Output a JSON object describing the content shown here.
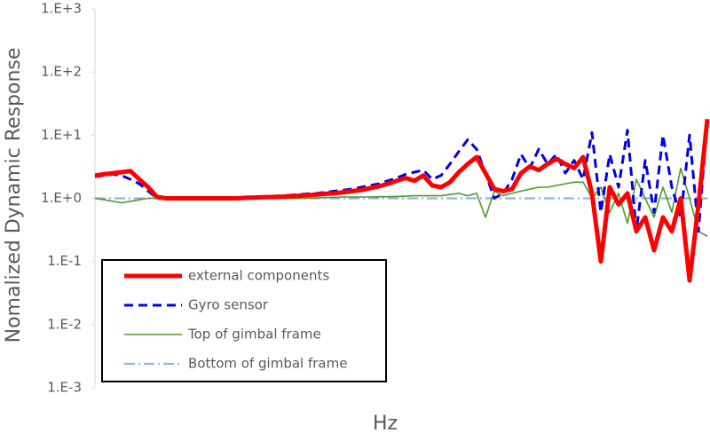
{
  "chart_data": {
    "type": "line",
    "y_label": "Nomalized Dynamic Response",
    "x_label": "Hz",
    "log_scale": true,
    "ylim": [
      0.001,
      1000
    ],
    "yticks": [
      {
        "value": 0.001,
        "label": "1.E-3"
      },
      {
        "value": 0.01,
        "label": "1.E-2"
      },
      {
        "value": 0.1,
        "label": "1.E-1"
      },
      {
        "value": 1,
        "label": "1.E+0"
      },
      {
        "value": 10,
        "label": "1.E+1"
      },
      {
        "value": 100,
        "label": "1.E+2"
      },
      {
        "value": 1000,
        "label": "1.E+3"
      }
    ],
    "categories": [
      null,
      null,
      null,
      null,
      null,
      null,
      null,
      null,
      null,
      null,
      null,
      null,
      null,
      null,
      null,
      null,
      null,
      null,
      null,
      null,
      null,
      null,
      null,
      null,
      null,
      null,
      null,
      null,
      null,
      null,
      null,
      null,
      null,
      null,
      null,
      null,
      null,
      null,
      null,
      null,
      null,
      null,
      null,
      null,
      null,
      null,
      null,
      null,
      null,
      null,
      null,
      null,
      null,
      null,
      null,
      null,
      null,
      null,
      null,
      null,
      null,
      null,
      null,
      null,
      null,
      null,
      null,
      null,
      null,
      null
    ],
    "series": [
      {
        "name": "external components",
        "color": "#ff0000",
        "values": [
          2.3,
          2.4,
          2.5,
          2.6,
          2.7,
          2.0,
          1.5,
          1.05,
          1.0,
          1.0,
          1.0,
          1.0,
          1.0,
          1.0,
          1.0,
          1.0,
          1.0,
          1.02,
          1.03,
          1.04,
          1.05,
          1.06,
          1.08,
          1.1,
          1.12,
          1.15,
          1.18,
          1.2,
          1.25,
          1.3,
          1.35,
          1.45,
          1.55,
          1.7,
          1.9,
          2.1,
          1.9,
          2.3,
          1.6,
          1.5,
          1.8,
          2.6,
          3.5,
          4.5,
          2.5,
          1.4,
          1.3,
          1.4,
          2.5,
          3.2,
          2.8,
          3.5,
          4.2,
          3.5,
          3.0,
          4.5,
          1.2,
          0.1,
          1.5,
          0.8,
          1.2,
          0.3,
          0.5,
          0.15,
          0.5,
          0.3,
          1.0,
          0.05,
          0.8,
          18
        ]
      },
      {
        "name": "Gyro sensor",
        "color": "#0000ee",
        "values": [
          2.2,
          2.3,
          2.4,
          2.3,
          2.0,
          1.7,
          1.3,
          1.0,
          1.0,
          1.0,
          1.0,
          1.0,
          1.0,
          1.0,
          1.0,
          1.0,
          1.02,
          1.04,
          1.05,
          1.06,
          1.08,
          1.1,
          1.12,
          1.15,
          1.18,
          1.2,
          1.25,
          1.3,
          1.35,
          1.4,
          1.5,
          1.6,
          1.7,
          1.9,
          2.1,
          2.4,
          2.6,
          2.8,
          2.0,
          2.3,
          3.5,
          5.5,
          8.5,
          6.0,
          2.5,
          1.0,
          1.2,
          2.0,
          5.0,
          3.0,
          6.0,
          3.5,
          5.0,
          2.5,
          4.0,
          2.0,
          11,
          0.6,
          5.0,
          1.5,
          12,
          0.3,
          4.0,
          0.6,
          10,
          1.5,
          0.5,
          10,
          0.3,
          17
        ]
      },
      {
        "name": "Top of gimbal frame",
        "color": "#4e9a2a",
        "values": [
          1.0,
          0.95,
          0.9,
          0.85,
          0.9,
          0.95,
          1.0,
          1.0,
          1.0,
          1.0,
          1.0,
          1.0,
          1.0,
          1.0,
          1.0,
          1.0,
          1.0,
          1.0,
          1.0,
          1.0,
          1.0,
          1.0,
          1.0,
          1.0,
          1.0,
          1.02,
          1.03,
          1.04,
          1.05,
          1.05,
          1.05,
          1.05,
          1.06,
          1.06,
          1.07,
          1.08,
          1.1,
          1.1,
          1.1,
          1.1,
          1.15,
          1.2,
          1.1,
          1.2,
          0.5,
          1.3,
          1.1,
          1.2,
          1.3,
          1.4,
          1.5,
          1.5,
          1.6,
          1.7,
          1.8,
          1.8,
          1.0,
          1.5,
          0.6,
          1.2,
          0.4,
          2.0,
          1.0,
          0.5,
          1.5,
          0.6,
          3.0,
          1.0,
          0.3,
          0.25
        ]
      },
      {
        "name": "Bottom of gimbal frame",
        "color": "#8eb4e3",
        "values": [
          1,
          1,
          1,
          1,
          1,
          1,
          1,
          1,
          1,
          1,
          1,
          1,
          1,
          1,
          1,
          1,
          1,
          1,
          1,
          1,
          1,
          1,
          1,
          1,
          1,
          1,
          1,
          1,
          1,
          1,
          1,
          1,
          1,
          1,
          1,
          1,
          1,
          1,
          1,
          1,
          1,
          1,
          1,
          1,
          1,
          1,
          1,
          1,
          1,
          1,
          1,
          1,
          1,
          1,
          1,
          1,
          1,
          1,
          1,
          1,
          1,
          1,
          1,
          1,
          1,
          1,
          1,
          1,
          1,
          1
        ]
      }
    ]
  }
}
